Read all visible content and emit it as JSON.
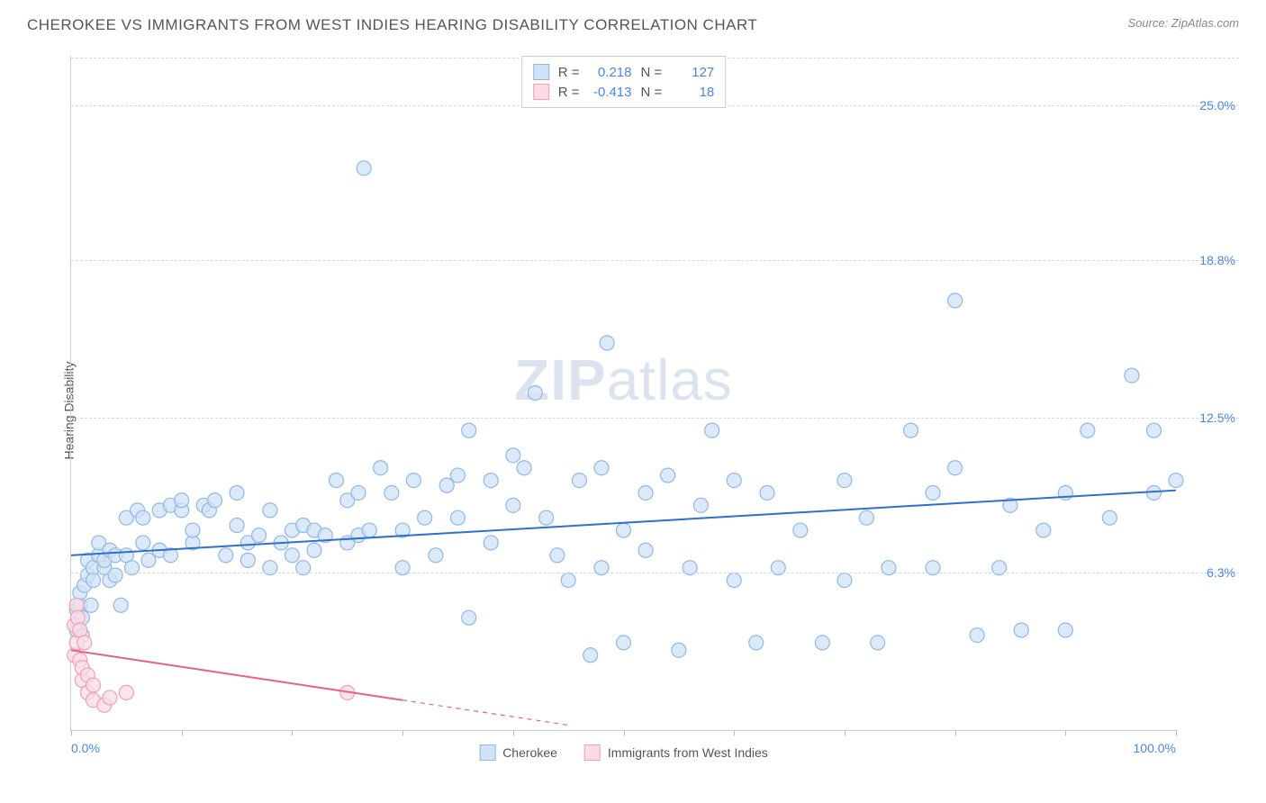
{
  "header": {
    "title": "CHEROKEE VS IMMIGRANTS FROM WEST INDIES HEARING DISABILITY CORRELATION CHART",
    "source": "Source: ZipAtlas.com"
  },
  "watermark": {
    "bold": "ZIP",
    "rest": "atlas"
  },
  "chart": {
    "type": "scatter",
    "y_label": "Hearing Disability",
    "xlim": [
      0,
      100
    ],
    "ylim": [
      0,
      27
    ],
    "x_ticks": [
      0,
      10,
      20,
      30,
      40,
      50,
      60,
      70,
      80,
      90,
      100
    ],
    "x_tick_labels": {
      "0": "0.0%",
      "100": "100.0%"
    },
    "y_ticks": [
      {
        "v": 6.3,
        "label": "6.3%"
      },
      {
        "v": 12.5,
        "label": "12.5%"
      },
      {
        "v": 18.8,
        "label": "18.8%"
      },
      {
        "v": 25.0,
        "label": "25.0%"
      }
    ],
    "grid_color": "#d8d8d8",
    "background_color": "#ffffff",
    "marker_radius": 8,
    "marker_stroke_width": 1.2,
    "trend_line_width": 2,
    "series": [
      {
        "name": "Cherokee",
        "fill": "#cfe2f7",
        "stroke": "#8fb8e8",
        "line_color": "#2f6fd0",
        "r_value": "0.218",
        "n_value": "127",
        "trend": {
          "x1": 0,
          "y1": 7.0,
          "x2": 100,
          "y2": 9.6
        },
        "points": [
          [
            0.5,
            4.0
          ],
          [
            0.5,
            4.8
          ],
          [
            0.8,
            5.0
          ],
          [
            0.8,
            5.5
          ],
          [
            1.0,
            3.8
          ],
          [
            1.0,
            4.5
          ],
          [
            1.2,
            5.8
          ],
          [
            1.5,
            6.2
          ],
          [
            1.5,
            6.8
          ],
          [
            1.8,
            5.0
          ],
          [
            2.0,
            6.5
          ],
          [
            2.0,
            6.0
          ],
          [
            2.5,
            7.0
          ],
          [
            2.5,
            7.5
          ],
          [
            3.0,
            6.5
          ],
          [
            3.0,
            6.8
          ],
          [
            3.5,
            6.0
          ],
          [
            3.5,
            7.2
          ],
          [
            4.0,
            6.2
          ],
          [
            4.0,
            7.0
          ],
          [
            4.5,
            5.0
          ],
          [
            5.0,
            8.5
          ],
          [
            5.0,
            7.0
          ],
          [
            5.5,
            6.5
          ],
          [
            6.0,
            8.8
          ],
          [
            6.5,
            7.5
          ],
          [
            6.5,
            8.5
          ],
          [
            7.0,
            6.8
          ],
          [
            8.0,
            8.8
          ],
          [
            8.0,
            7.2
          ],
          [
            9.0,
            9.0
          ],
          [
            9.0,
            7.0
          ],
          [
            10.0,
            8.8
          ],
          [
            10.0,
            9.2
          ],
          [
            11.0,
            7.5
          ],
          [
            11.0,
            8.0
          ],
          [
            12.0,
            9.0
          ],
          [
            12.5,
            8.8
          ],
          [
            13.0,
            9.2
          ],
          [
            14.0,
            7.0
          ],
          [
            15.0,
            9.5
          ],
          [
            15.0,
            8.2
          ],
          [
            16.0,
            6.8
          ],
          [
            16.0,
            7.5
          ],
          [
            17.0,
            7.8
          ],
          [
            18.0,
            8.8
          ],
          [
            18.0,
            6.5
          ],
          [
            19.0,
            7.5
          ],
          [
            20.0,
            8.0
          ],
          [
            20.0,
            7.0
          ],
          [
            21.0,
            8.2
          ],
          [
            21.0,
            6.5
          ],
          [
            22.0,
            8.0
          ],
          [
            22.0,
            7.2
          ],
          [
            23.0,
            7.8
          ],
          [
            24.0,
            10.0
          ],
          [
            25.0,
            9.2
          ],
          [
            25.0,
            7.5
          ],
          [
            26.0,
            9.5
          ],
          [
            26.0,
            7.8
          ],
          [
            26.5,
            22.5
          ],
          [
            27.0,
            8.0
          ],
          [
            28.0,
            10.5
          ],
          [
            29.0,
            9.5
          ],
          [
            30.0,
            8.0
          ],
          [
            30.0,
            6.5
          ],
          [
            31.0,
            10.0
          ],
          [
            32.0,
            8.5
          ],
          [
            33.0,
            7.0
          ],
          [
            34.0,
            9.8
          ],
          [
            35.0,
            10.2
          ],
          [
            35.0,
            8.5
          ],
          [
            36.0,
            12.0
          ],
          [
            36.0,
            4.5
          ],
          [
            38.0,
            10.0
          ],
          [
            38.0,
            7.5
          ],
          [
            40.0,
            9.0
          ],
          [
            40.0,
            11.0
          ],
          [
            41.0,
            10.5
          ],
          [
            42.0,
            13.5
          ],
          [
            43.0,
            8.5
          ],
          [
            44.0,
            7.0
          ],
          [
            45.0,
            6.0
          ],
          [
            46.0,
            10.0
          ],
          [
            47.0,
            3.0
          ],
          [
            48.0,
            10.5
          ],
          [
            48.0,
            6.5
          ],
          [
            48.5,
            15.5
          ],
          [
            50.0,
            8.0
          ],
          [
            50.0,
            3.5
          ],
          [
            52.0,
            9.5
          ],
          [
            52.0,
            7.2
          ],
          [
            54.0,
            10.2
          ],
          [
            55.0,
            3.2
          ],
          [
            56.0,
            6.5
          ],
          [
            57.0,
            9.0
          ],
          [
            58.0,
            12.0
          ],
          [
            60.0,
            10.0
          ],
          [
            60.0,
            6.0
          ],
          [
            62.0,
            3.5
          ],
          [
            63.0,
            9.5
          ],
          [
            64.0,
            6.5
          ],
          [
            66.0,
            8.0
          ],
          [
            68.0,
            3.5
          ],
          [
            70.0,
            10.0
          ],
          [
            70.0,
            6.0
          ],
          [
            72.0,
            8.5
          ],
          [
            73.0,
            3.5
          ],
          [
            74.0,
            6.5
          ],
          [
            76.0,
            12.0
          ],
          [
            78.0,
            6.5
          ],
          [
            78.0,
            9.5
          ],
          [
            80.0,
            10.5
          ],
          [
            80.0,
            17.2
          ],
          [
            82.0,
            3.8
          ],
          [
            84.0,
            6.5
          ],
          [
            85.0,
            9.0
          ],
          [
            86.0,
            4.0
          ],
          [
            88.0,
            8.0
          ],
          [
            90.0,
            9.5
          ],
          [
            90.0,
            4.0
          ],
          [
            92.0,
            12.0
          ],
          [
            94.0,
            8.5
          ],
          [
            96.0,
            14.2
          ],
          [
            98.0,
            12.0
          ],
          [
            98.0,
            9.5
          ],
          [
            100.0,
            10.0
          ]
        ]
      },
      {
        "name": "Immigrants from West Indies",
        "fill": "#fbdce4",
        "stroke": "#f09fb5",
        "line_color": "#ea5f8a",
        "r_value": "-0.413",
        "n_value": "18",
        "trend_solid": {
          "x1": 0,
          "y1": 3.2,
          "x2": 30,
          "y2": 1.2
        },
        "trend_dash": {
          "x1": 30,
          "y1": 1.2,
          "x2": 45,
          "y2": 0.2
        },
        "points": [
          [
            0.3,
            3.0
          ],
          [
            0.3,
            4.2
          ],
          [
            0.5,
            3.5
          ],
          [
            0.5,
            5.0
          ],
          [
            0.6,
            4.5
          ],
          [
            0.8,
            2.8
          ],
          [
            0.8,
            4.0
          ],
          [
            1.0,
            2.0
          ],
          [
            1.0,
            2.5
          ],
          [
            1.2,
            3.5
          ],
          [
            1.5,
            1.5
          ],
          [
            1.5,
            2.2
          ],
          [
            2.0,
            1.2
          ],
          [
            2.0,
            1.8
          ],
          [
            3.0,
            1.0
          ],
          [
            3.5,
            1.3
          ],
          [
            5.0,
            1.5
          ],
          [
            25.0,
            1.5
          ]
        ]
      }
    ],
    "legend_top_labels": {
      "r": "R =",
      "n": "N ="
    },
    "legend_bottom": [
      {
        "swatch_fill": "#cfe2f7",
        "swatch_stroke": "#8fb8e8",
        "label": "Cherokee"
      },
      {
        "swatch_fill": "#fbdce4",
        "swatch_stroke": "#f09fb5",
        "label": "Immigrants from West Indies"
      }
    ]
  }
}
